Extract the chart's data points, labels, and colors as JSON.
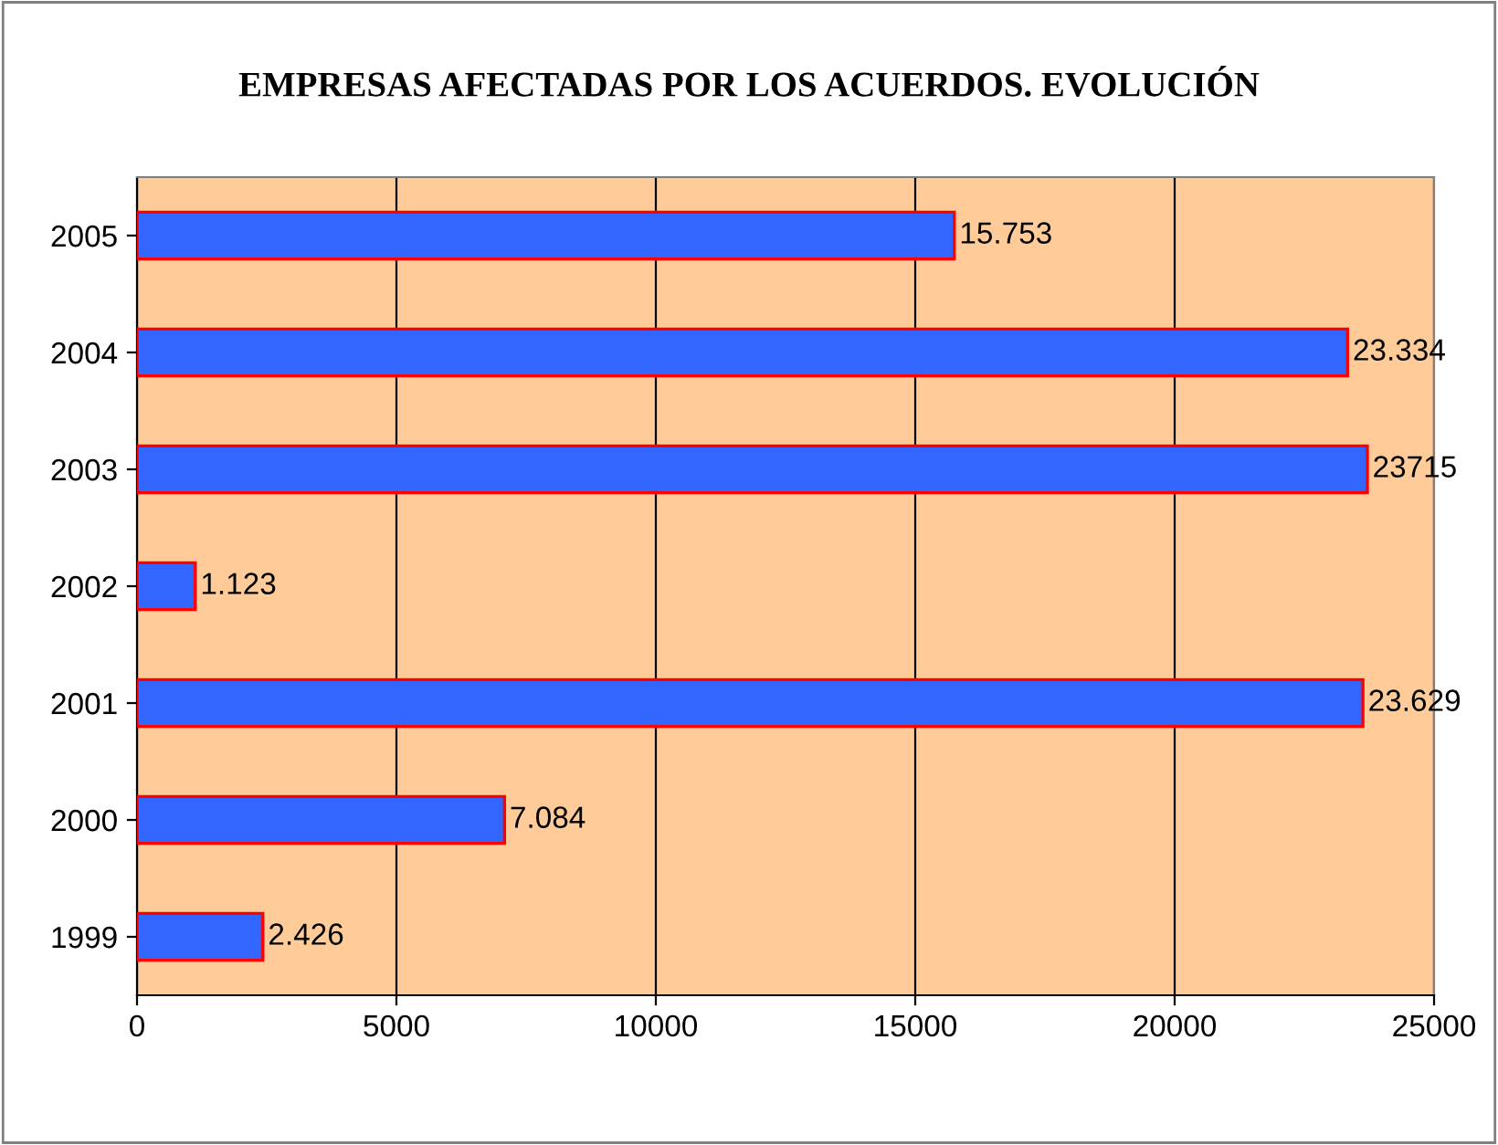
{
  "chart_data": {
    "type": "bar",
    "orientation": "horizontal",
    "title": "EMPRESAS AFECTADAS POR LOS ACUERDOS. EVOLUCIÓN",
    "categories": [
      "2005",
      "2004",
      "2003",
      "2002",
      "2001",
      "2000",
      "1999"
    ],
    "series": [
      {
        "color": "#3366ff",
        "values": [
          15753,
          23334,
          23715,
          1123,
          23629,
          7084,
          2426
        ],
        "value_labels": [
          "15.753",
          "23.334",
          "23715",
          "1.123",
          "23.629",
          "7.084",
          "2.426"
        ]
      }
    ],
    "xlim": [
      0,
      25000
    ],
    "xticks": [
      0,
      5000,
      10000,
      15000,
      20000,
      25000
    ],
    "grid": "x",
    "legend": false
  }
}
